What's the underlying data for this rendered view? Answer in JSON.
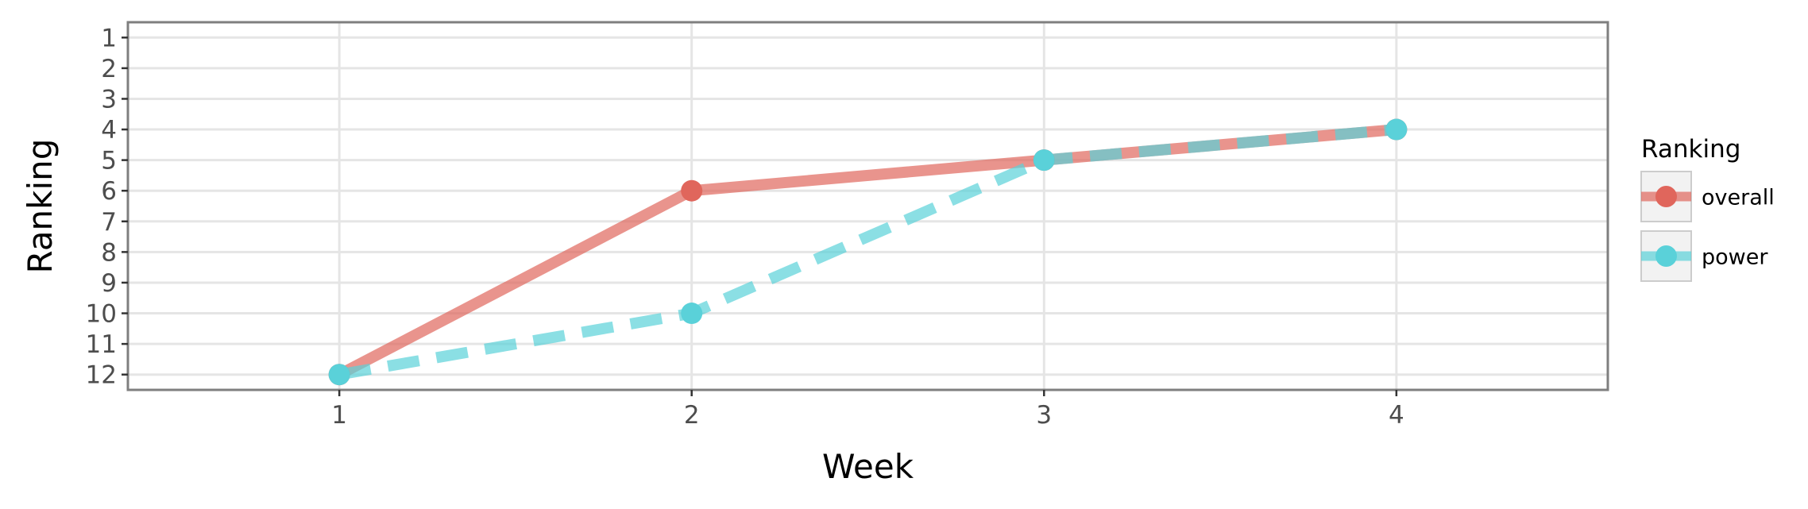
{
  "chart_data": {
    "type": "line",
    "xlabel": "Week",
    "ylabel": "Ranking",
    "x": [
      1,
      2,
      3,
      4
    ],
    "xlim": [
      0.4,
      4.6
    ],
    "ylim": [
      12.5,
      0.5
    ],
    "y_reversed": true,
    "x_ticks": [
      1,
      2,
      3,
      4
    ],
    "y_ticks": [
      1,
      2,
      3,
      4,
      5,
      6,
      7,
      8,
      9,
      10,
      11,
      12
    ],
    "grid": true,
    "legend": {
      "title": "Ranking",
      "position": "right"
    },
    "series": [
      {
        "name": "overall",
        "values": [
          12,
          6,
          5,
          4
        ],
        "color": "#e0665c",
        "linestyle": "solid"
      },
      {
        "name": "power",
        "values": [
          12,
          10,
          5,
          4
        ],
        "color": "#5ad1d9",
        "linestyle": "dashed"
      }
    ]
  }
}
